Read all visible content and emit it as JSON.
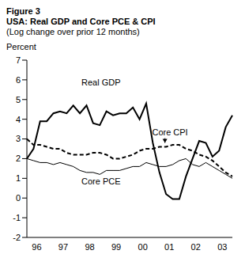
{
  "chart_data": {
    "type": "line",
    "title": "Figure 3",
    "subtitle": "USA: Real GDP and Core PCE & CPI",
    "caption": "(Log change over prior 12 months)",
    "y_label": "Percent",
    "categories": [
      null,
      "96",
      null,
      null,
      null,
      "97",
      null,
      null,
      null,
      "98",
      null,
      null,
      null,
      "99",
      null,
      null,
      null,
      "00",
      null,
      null,
      null,
      "01",
      null,
      null,
      null,
      "02",
      null,
      null,
      null,
      "03",
      null,
      null
    ],
    "ylim": [
      -2,
      7
    ],
    "yticks": [
      -2,
      -1,
      0,
      1,
      2,
      3,
      4,
      5,
      6,
      7
    ],
    "grid": false,
    "series": [
      {
        "name": "Real GDP",
        "color": "#000000",
        "line_style": "solid",
        "values": [
          2.0,
          2.5,
          3.9,
          3.9,
          4.3,
          4.4,
          4.3,
          4.7,
          4.3,
          4.7,
          3.8,
          3.7,
          4.4,
          4.2,
          4.3,
          4.3,
          4.6,
          4.0,
          4.8,
          2.8,
          1.3,
          0.2,
          -0.05,
          -0.05,
          1.1,
          2.0,
          2.9,
          2.8,
          2.1,
          2.4,
          3.6,
          4.2
        ]
      },
      {
        "name": "Core CPI",
        "color": "#000000",
        "line_style": "dashed",
        "values": [
          3.0,
          2.7,
          2.7,
          2.6,
          2.5,
          2.5,
          2.3,
          2.2,
          2.2,
          2.2,
          2.3,
          2.3,
          2.2,
          2.0,
          2.0,
          2.1,
          2.2,
          2.4,
          2.5,
          2.5,
          2.6,
          2.6,
          2.7,
          2.7,
          2.5,
          2.4,
          2.2,
          2.1,
          1.9,
          1.6,
          1.3,
          1.1
        ]
      },
      {
        "name": "Core PCE",
        "color": "#000000",
        "line_style": "solid",
        "values": [
          2.0,
          1.9,
          1.8,
          1.8,
          1.7,
          1.8,
          1.7,
          1.6,
          1.4,
          1.3,
          1.3,
          1.2,
          1.4,
          1.4,
          1.4,
          1.5,
          1.6,
          1.6,
          1.8,
          1.7,
          1.6,
          1.6,
          1.7,
          1.9,
          2.0,
          1.7,
          1.6,
          1.8,
          1.6,
          1.4,
          1.2,
          1.0
        ]
      }
    ]
  }
}
